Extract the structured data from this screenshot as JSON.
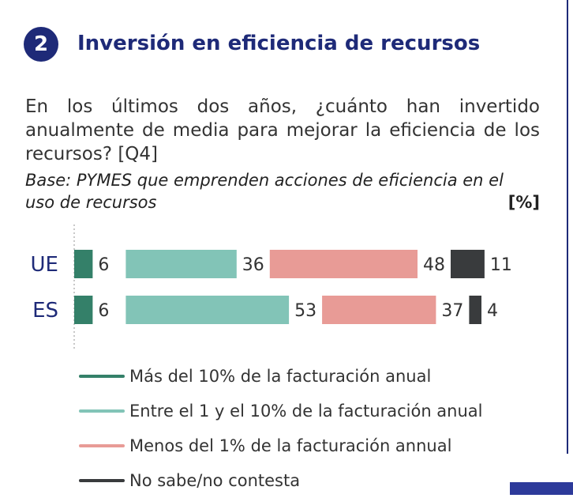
{
  "header": {
    "badge": "2",
    "title": "Inversión en eficiencia de recursos"
  },
  "question": "En los últimos dos años, ¿cuánto han invertido anualmente de media para mejorar la eficiencia de los recursos? [Q4]",
  "base": "Base: PYMES que emprenden acciones de eficiencia en el uso de recursos",
  "unit": "[%]",
  "chart_data": {
    "type": "bar",
    "orientation": "horizontal",
    "layout": "segmented",
    "categories": [
      "UE",
      "ES"
    ],
    "series": [
      {
        "name": "Más del 10% de la facturación anual",
        "values": [
          6,
          6
        ],
        "color": "#348069"
      },
      {
        "name": "Entre el 1 y el 10% de la facturación anual",
        "values": [
          36,
          53
        ],
        "color": "#82c4b7"
      },
      {
        "name": "Menos del 1% de la facturación annual",
        "values": [
          48,
          37
        ],
        "color": "#e89b96"
      },
      {
        "name": "No sabe/no contesta",
        "values": [
          11,
          4
        ],
        "color": "#393b3d"
      }
    ],
    "legend_position": "bottom",
    "grid": false
  }
}
